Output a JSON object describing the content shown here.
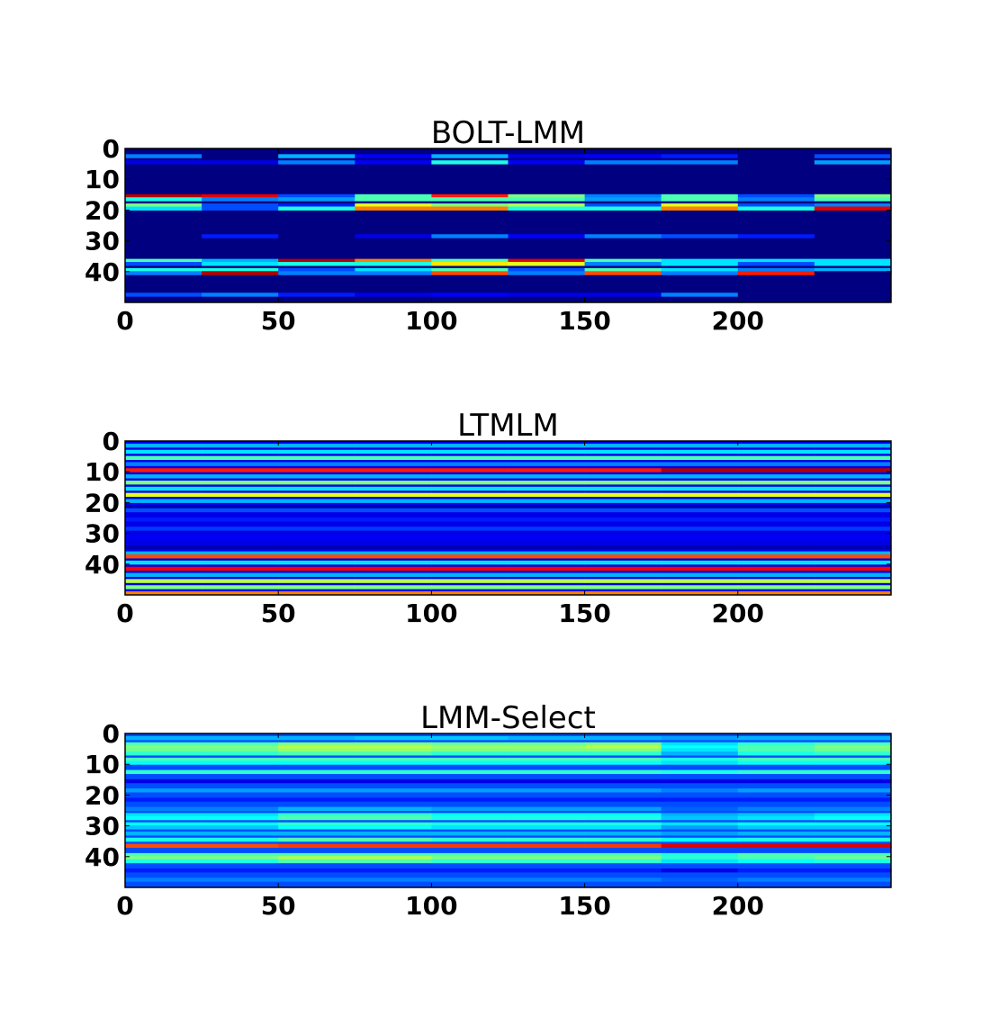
{
  "chart_data": [
    {
      "type": "heatmap",
      "title": "BOLT-LMM",
      "colormap": "jet",
      "xlim": [
        0,
        250
      ],
      "ylim": [
        50,
        0
      ],
      "xticks": [
        0,
        50,
        100,
        150,
        200
      ],
      "yticks": [
        0,
        10,
        20,
        30,
        40
      ],
      "n_cols": 250,
      "n_rows": 50,
      "block_width": 25,
      "background": 0.0,
      "rows": [
        {
          "y": 2,
          "h": 1,
          "v": [
            0.25,
            0,
            0.3,
            0.12,
            0.3,
            0.1,
            0.12,
            0.15,
            0,
            0.2
          ]
        },
        {
          "y": 4,
          "h": 1,
          "v": [
            0.1,
            0.1,
            0.25,
            0.12,
            0.4,
            0.12,
            0.25,
            0.25,
            0,
            0.28
          ]
        },
        {
          "y": 15,
          "h": 1,
          "v": [
            0.95,
            0.9,
            0.2,
            0.45,
            0.85,
            0.5,
            0.25,
            0.45,
            0.2,
            0.5
          ]
        },
        {
          "y": 16,
          "h": 1,
          "v": [
            0.4,
            0.25,
            0.28,
            0.45,
            0.45,
            0.45,
            0.28,
            0.45,
            0.25,
            0.45
          ]
        },
        {
          "y": 18,
          "h": 1,
          "v": [
            0.5,
            0.2,
            0.15,
            0.6,
            0.5,
            0.55,
            0.2,
            0.6,
            0.2,
            0.25
          ]
        },
        {
          "y": 19,
          "h": 1,
          "v": [
            0.35,
            0.2,
            0.4,
            0.75,
            0.75,
            0.4,
            0.4,
            0.75,
            0.4,
            0.9
          ]
        },
        {
          "y": 28,
          "h": 1,
          "v": [
            0,
            0.15,
            0,
            0.1,
            0.25,
            0.12,
            0.25,
            0.2,
            0.15,
            0
          ]
        },
        {
          "y": 36,
          "h": 1,
          "v": [
            0.45,
            0.3,
            0.95,
            0.75,
            0.45,
            0.9,
            0.45,
            0.35,
            0.35,
            0.35
          ]
        },
        {
          "y": 37,
          "h": 1,
          "v": [
            0.2,
            0.35,
            0.4,
            0.4,
            0.65,
            0.6,
            0.25,
            0.35,
            0.2,
            0.35
          ]
        },
        {
          "y": 39,
          "h": 1,
          "v": [
            0.4,
            0.4,
            0.2,
            0.35,
            0.45,
            0.2,
            0.45,
            0.35,
            0.25,
            0.3
          ]
        },
        {
          "y": 40,
          "h": 1,
          "v": [
            0.25,
            0.95,
            0.25,
            0.25,
            0.8,
            0.25,
            0.8,
            0.25,
            0.85,
            0
          ]
        },
        {
          "y": 47,
          "h": 1,
          "v": [
            0.2,
            0.25,
            0.15,
            0.1,
            0.12,
            0.1,
            0.1,
            0.25,
            0,
            0
          ]
        }
      ]
    },
    {
      "type": "heatmap",
      "title": "LTMLM",
      "colormap": "jet",
      "xlim": [
        0,
        250
      ],
      "ylim": [
        50,
        0
      ],
      "xticks": [
        0,
        50,
        100,
        150,
        200
      ],
      "yticks": [
        0,
        10,
        20,
        30,
        40
      ],
      "n_cols": 250,
      "n_rows": 50,
      "block_width": 25,
      "background": 0.1,
      "rows": [
        {
          "y": 1,
          "h": 1,
          "v": [
            0.3,
            0.3,
            0.3,
            0.3,
            0.3,
            0.3,
            0.3,
            0.3,
            0.3,
            0.3
          ]
        },
        {
          "y": 3,
          "h": 1,
          "v": [
            0.35,
            0.35,
            0.35,
            0.35,
            0.35,
            0.35,
            0.35,
            0.35,
            0.35,
            0.35
          ]
        },
        {
          "y": 5,
          "h": 1,
          "v": [
            0.45,
            0.45,
            0.45,
            0.45,
            0.45,
            0.45,
            0.45,
            0.45,
            0.45,
            0.45
          ]
        },
        {
          "y": 7,
          "h": 1,
          "v": [
            0.25,
            0.25,
            0.25,
            0.25,
            0.25,
            0.25,
            0.25,
            0.25,
            0.25,
            0.25
          ]
        },
        {
          "y": 9,
          "h": 1,
          "v": [
            0.85,
            0.85,
            0.85,
            0.85,
            0.85,
            0.85,
            0.85,
            0.95,
            0.95,
            0.95
          ]
        },
        {
          "y": 11,
          "h": 1,
          "v": [
            0.3,
            0.3,
            0.3,
            0.3,
            0.3,
            0.3,
            0.3,
            0.3,
            0.3,
            0.3
          ]
        },
        {
          "y": 13,
          "h": 1,
          "v": [
            0.5,
            0.5,
            0.5,
            0.5,
            0.5,
            0.5,
            0.5,
            0.5,
            0.5,
            0.5
          ]
        },
        {
          "y": 15,
          "h": 1,
          "v": [
            0.35,
            0.35,
            0.35,
            0.35,
            0.35,
            0.35,
            0.35,
            0.35,
            0.35,
            0.35
          ]
        },
        {
          "y": 17,
          "h": 1,
          "v": [
            0.6,
            0.6,
            0.6,
            0.6,
            0.6,
            0.6,
            0.6,
            0.6,
            0.6,
            0.6
          ]
        },
        {
          "y": 19,
          "h": 1,
          "v": [
            0.3,
            0.3,
            0.3,
            0.3,
            0.3,
            0.3,
            0.3,
            0.3,
            0.3,
            0.3
          ]
        },
        {
          "y": 21,
          "h": 1,
          "v": [
            0.05,
            0.05,
            0.05,
            0.05,
            0.05,
            0.05,
            0.05,
            0.05,
            0.05,
            0.05
          ]
        },
        {
          "y": 22,
          "h": 1,
          "v": [
            0.2,
            0.2,
            0.2,
            0.2,
            0.2,
            0.2,
            0.2,
            0.2,
            0.2,
            0.2
          ]
        },
        {
          "y": 25,
          "h": 1,
          "v": [
            0.15,
            0.15,
            0.15,
            0.15,
            0.15,
            0.15,
            0.15,
            0.15,
            0.15,
            0.15
          ]
        },
        {
          "y": 28,
          "h": 1,
          "v": [
            0.18,
            0.18,
            0.18,
            0.18,
            0.18,
            0.18,
            0.18,
            0.18,
            0.18,
            0.18
          ]
        },
        {
          "y": 31,
          "h": 1,
          "v": [
            0.12,
            0.12,
            0.12,
            0.12,
            0.12,
            0.12,
            0.12,
            0.12,
            0.12,
            0.12
          ]
        },
        {
          "y": 34,
          "h": 1,
          "v": [
            0.05,
            0.05,
            0.05,
            0.05,
            0.05,
            0.05,
            0.05,
            0.05,
            0.05,
            0.05
          ]
        },
        {
          "y": 36,
          "h": 1,
          "v": [
            0.3,
            0.3,
            0.3,
            0.3,
            0.3,
            0.3,
            0.3,
            0.3,
            0.3,
            0.3
          ]
        },
        {
          "y": 37,
          "h": 1,
          "v": [
            0.8,
            0.8,
            0.8,
            0.8,
            0.8,
            0.8,
            0.8,
            0.8,
            0.8,
            0.8
          ]
        },
        {
          "y": 39,
          "h": 1,
          "v": [
            0.35,
            0.35,
            0.35,
            0.35,
            0.35,
            0.35,
            0.35,
            0.35,
            0.35,
            0.35
          ]
        },
        {
          "y": 41,
          "h": 1,
          "v": [
            0.88,
            0.88,
            0.88,
            0.88,
            0.88,
            0.88,
            0.88,
            0.88,
            0.88,
            0.88
          ]
        },
        {
          "y": 43,
          "h": 1,
          "v": [
            0.3,
            0.3,
            0.3,
            0.3,
            0.3,
            0.3,
            0.3,
            0.3,
            0.3,
            0.3
          ]
        },
        {
          "y": 45,
          "h": 1,
          "v": [
            0.55,
            0.55,
            0.55,
            0.55,
            0.55,
            0.55,
            0.55,
            0.55,
            0.55,
            0.55
          ]
        },
        {
          "y": 47,
          "h": 1,
          "v": [
            0.5,
            0.5,
            0.5,
            0.5,
            0.5,
            0.5,
            0.5,
            0.5,
            0.5,
            0.5
          ]
        },
        {
          "y": 49,
          "h": 1,
          "v": [
            0.75,
            0.75,
            0.75,
            0.75,
            0.75,
            0.75,
            0.75,
            0.75,
            0.75,
            0.75
          ]
        }
      ]
    },
    {
      "type": "heatmap",
      "title": "LMM-Select",
      "colormap": "jet",
      "xlim": [
        0,
        250
      ],
      "ylim": [
        50,
        0
      ],
      "xticks": [
        0,
        50,
        100,
        150,
        200
      ],
      "yticks": [
        0,
        10,
        20,
        30,
        40
      ],
      "n_cols": 250,
      "n_rows": 50,
      "block_width": 25,
      "background": 0.2,
      "rows": [
        {
          "y": 1,
          "h": 1,
          "v": [
            0.3,
            0.3,
            0.3,
            0.32,
            0.32,
            0.3,
            0.3,
            0.28,
            0.3,
            0.3
          ]
        },
        {
          "y": 3,
          "h": 1,
          "v": [
            0.45,
            0.45,
            0.5,
            0.5,
            0.48,
            0.48,
            0.5,
            0.35,
            0.42,
            0.45
          ]
        },
        {
          "y": 4,
          "h": 1,
          "v": [
            0.5,
            0.5,
            0.55,
            0.55,
            0.52,
            0.52,
            0.55,
            0.38,
            0.45,
            0.5
          ]
        },
        {
          "y": 5,
          "h": 1,
          "v": [
            0.48,
            0.48,
            0.52,
            0.52,
            0.5,
            0.5,
            0.5,
            0.35,
            0.45,
            0.48
          ]
        },
        {
          "y": 6,
          "h": 1,
          "v": [
            0.42,
            0.42,
            0.45,
            0.45,
            0.42,
            0.42,
            0.42,
            0.3,
            0.4,
            0.42
          ]
        },
        {
          "y": 8,
          "h": 1,
          "v": [
            0.45,
            0.45,
            0.45,
            0.45,
            0.45,
            0.45,
            0.45,
            0.4,
            0.45,
            0.45
          ]
        },
        {
          "y": 9,
          "h": 1,
          "v": [
            0.38,
            0.38,
            0.38,
            0.38,
            0.38,
            0.38,
            0.38,
            0.35,
            0.38,
            0.38
          ]
        },
        {
          "y": 12,
          "h": 1,
          "v": [
            0.42,
            0.42,
            0.42,
            0.42,
            0.42,
            0.42,
            0.42,
            0.4,
            0.42,
            0.42
          ]
        },
        {
          "y": 15,
          "h": 1,
          "v": [
            0.1,
            0.1,
            0.1,
            0.1,
            0.1,
            0.1,
            0.1,
            0.1,
            0.1,
            0.1
          ]
        },
        {
          "y": 18,
          "h": 1,
          "v": [
            0.28,
            0.28,
            0.28,
            0.28,
            0.28,
            0.28,
            0.28,
            0.25,
            0.28,
            0.28
          ]
        },
        {
          "y": 21,
          "h": 1,
          "v": [
            0.15,
            0.15,
            0.15,
            0.15,
            0.15,
            0.15,
            0.15,
            0.15,
            0.15,
            0.15
          ]
        },
        {
          "y": 24,
          "h": 1,
          "v": [
            0.25,
            0.25,
            0.3,
            0.3,
            0.28,
            0.28,
            0.28,
            0.22,
            0.25,
            0.25
          ]
        },
        {
          "y": 26,
          "h": 1,
          "v": [
            0.35,
            0.35,
            0.42,
            0.42,
            0.38,
            0.38,
            0.38,
            0.3,
            0.32,
            0.35
          ]
        },
        {
          "y": 27,
          "h": 1,
          "v": [
            0.38,
            0.38,
            0.45,
            0.45,
            0.4,
            0.4,
            0.4,
            0.32,
            0.35,
            0.38
          ]
        },
        {
          "y": 29,
          "h": 1,
          "v": [
            0.38,
            0.38,
            0.42,
            0.42,
            0.4,
            0.4,
            0.4,
            0.35,
            0.38,
            0.38
          ]
        },
        {
          "y": 30,
          "h": 1,
          "v": [
            0.32,
            0.32,
            0.38,
            0.38,
            0.35,
            0.35,
            0.35,
            0.28,
            0.32,
            0.32
          ]
        },
        {
          "y": 32,
          "h": 1,
          "v": [
            0.3,
            0.3,
            0.3,
            0.3,
            0.3,
            0.3,
            0.3,
            0.28,
            0.3,
            0.3
          ]
        },
        {
          "y": 34,
          "h": 1,
          "v": [
            0.4,
            0.4,
            0.45,
            0.45,
            0.42,
            0.42,
            0.42,
            0.38,
            0.4,
            0.4
          ]
        },
        {
          "y": 36,
          "h": 1,
          "v": [
            0.8,
            0.8,
            0.82,
            0.82,
            0.82,
            0.82,
            0.82,
            0.9,
            0.9,
            0.9
          ]
        },
        {
          "y": 39,
          "h": 1,
          "v": [
            0.45,
            0.45,
            0.45,
            0.45,
            0.45,
            0.45,
            0.45,
            0.4,
            0.45,
            0.45
          ]
        },
        {
          "y": 40,
          "h": 1,
          "v": [
            0.5,
            0.5,
            0.55,
            0.55,
            0.5,
            0.5,
            0.5,
            0.42,
            0.45,
            0.48
          ]
        },
        {
          "y": 41,
          "h": 1,
          "v": [
            0.4,
            0.4,
            0.45,
            0.45,
            0.42,
            0.42,
            0.42,
            0.35,
            0.38,
            0.4
          ]
        },
        {
          "y": 44,
          "h": 1,
          "v": [
            0.15,
            0.15,
            0.15,
            0.15,
            0.15,
            0.15,
            0.15,
            0.1,
            0.15,
            0.15
          ]
        },
        {
          "y": 47,
          "h": 1,
          "v": [
            0.25,
            0.25,
            0.25,
            0.25,
            0.25,
            0.25,
            0.25,
            0.22,
            0.25,
            0.25
          ]
        }
      ]
    }
  ]
}
